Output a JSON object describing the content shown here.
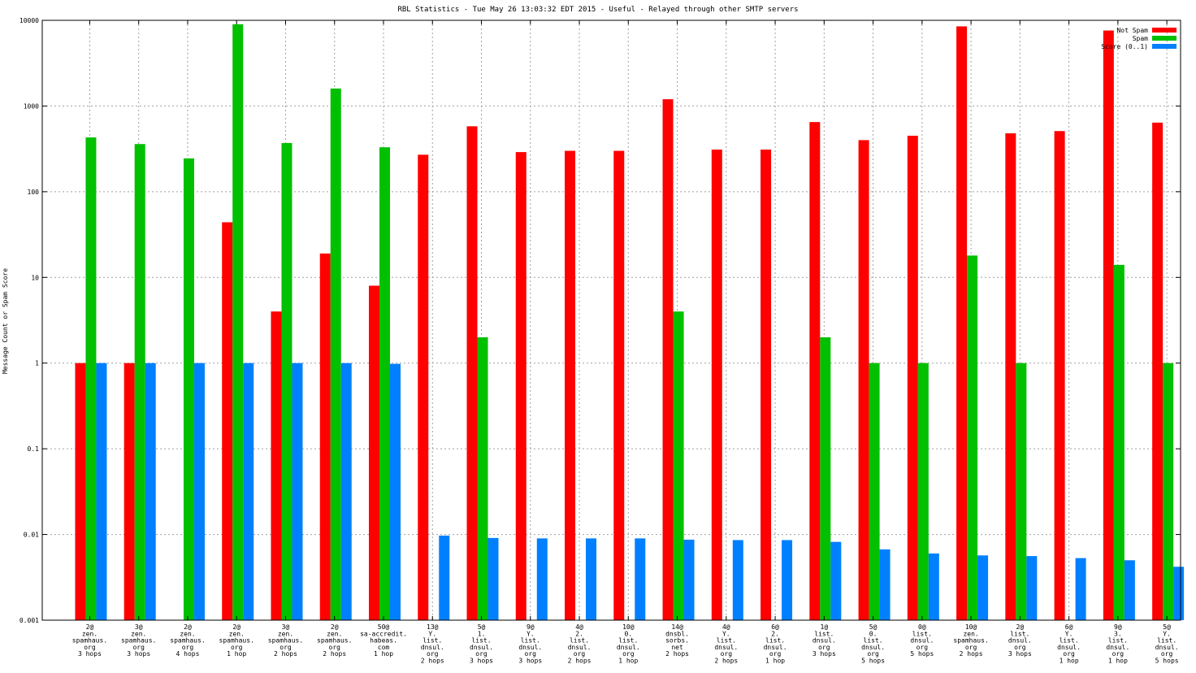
{
  "chart_data": {
    "type": "bar",
    "title": "RBL Statistics - Tue May 26 13:03:32 EDT 2015 - Useful - Relayed through other SMTP servers",
    "xlabel": "",
    "ylabel": "Message Count or Spam Score",
    "yscale": "log",
    "ylim": [
      0.001,
      10000
    ],
    "y_ticks": [
      {
        "value": 0.001,
        "label": "0.001"
      },
      {
        "value": 0.01,
        "label": "0.01"
      },
      {
        "value": 0.1,
        "label": "0.1"
      },
      {
        "value": 1,
        "label": "1"
      },
      {
        "value": 10,
        "label": "10"
      },
      {
        "value": 100,
        "label": "100"
      },
      {
        "value": 1000,
        "label": "1000"
      },
      {
        "value": 10000,
        "label": "10000"
      }
    ],
    "grid": true,
    "legend_position": "top-right",
    "categories": [
      [
        "2@",
        "zen.",
        "spamhaus.",
        "org",
        "3 hops"
      ],
      [
        "3@",
        "zen.",
        "spamhaus.",
        "org",
        "3 hops"
      ],
      [
        "2@",
        "zen.",
        "spamhaus.",
        "org",
        "4 hops"
      ],
      [
        "2@",
        "zen.",
        "spamhaus.",
        "org",
        "1 hop"
      ],
      [
        "3@",
        "zen.",
        "spamhaus.",
        "org",
        "2 hops"
      ],
      [
        "2@",
        "zen.",
        "spamhaus.",
        "org",
        "2 hops"
      ],
      [
        "50@",
        "sa-accredit.",
        "habeas.",
        "com",
        "1 hop"
      ],
      [
        "13@",
        "Y.",
        "list.",
        "dnsul.",
        "org",
        "2 hops"
      ],
      [
        "5@",
        "1.",
        "list.",
        "dnsul.",
        "org",
        "3 hops"
      ],
      [
        "9@",
        "Y.",
        "list.",
        "dnsul.",
        "org",
        "3 hops"
      ],
      [
        "4@",
        "2.",
        "list.",
        "dnsul.",
        "org",
        "2 hops"
      ],
      [
        "10@",
        "0.",
        "list.",
        "dnsul.",
        "org",
        "1 hop"
      ],
      [
        "14@",
        "dnsbl.",
        "sorbs.",
        "net",
        "2 hops"
      ],
      [
        "4@",
        "Y.",
        "list.",
        "dnsul.",
        "org",
        "2 hops"
      ],
      [
        "6@",
        "2.",
        "list.",
        "dnsul.",
        "org",
        "1 hop"
      ],
      [
        "1@",
        "list.",
        "dnsul.",
        "org",
        "3 hops"
      ],
      [
        "5@",
        "0.",
        "list.",
        "dnsul.",
        "org",
        "5 hops"
      ],
      [
        "0@",
        "list.",
        "dnsul.",
        "org",
        "5 hops"
      ],
      [
        "10@",
        "zen.",
        "spamhaus.",
        "org",
        "2 hops"
      ],
      [
        "2@",
        "list.",
        "dnsul.",
        "org",
        "3 hops"
      ],
      [
        "6@",
        "Y.",
        "list.",
        "dnsul.",
        "org",
        "1 hop"
      ],
      [
        "9@",
        "3.",
        "list.",
        "dnsul.",
        "org",
        "1 hop"
      ],
      [
        "5@",
        "Y.",
        "list.",
        "dnsul.",
        "org",
        "5 hops"
      ]
    ],
    "series": [
      {
        "name": "Not Spam",
        "color": "#ff0000",
        "values": [
          1,
          1,
          null,
          44,
          4,
          19,
          8,
          270,
          580,
          290,
          300,
          300,
          1200,
          310,
          310,
          650,
          400,
          450,
          8500,
          480,
          510,
          7600,
          640
        ]
      },
      {
        "name": "Spam",
        "color": "#00c000",
        "values": [
          430,
          360,
          245,
          9000,
          370,
          1600,
          330,
          null,
          2,
          null,
          null,
          null,
          4,
          null,
          null,
          2,
          1,
          1,
          18,
          1,
          null,
          14,
          1
        ]
      },
      {
        "name": "Score (0..1)",
        "color": "#0080ff",
        "values": [
          1,
          1,
          1,
          1,
          1,
          1,
          0.98,
          0.0097,
          0.0091,
          0.009,
          0.009,
          0.009,
          0.0087,
          0.0086,
          0.0086,
          0.0082,
          0.0067,
          0.006,
          0.0057,
          0.0056,
          0.0053,
          0.005,
          0.0042
        ]
      }
    ]
  }
}
